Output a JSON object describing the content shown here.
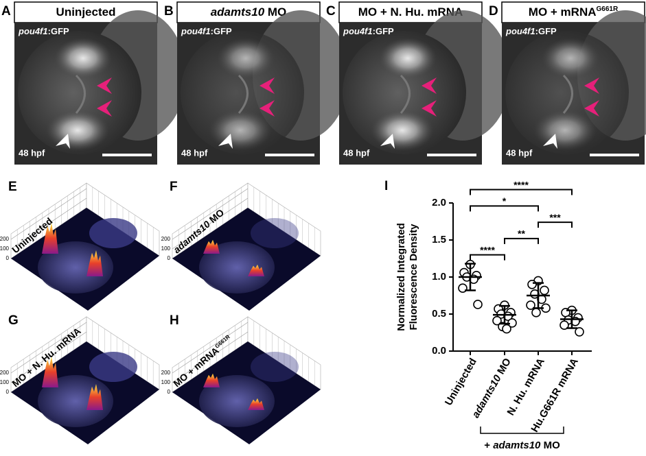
{
  "panels": [
    {
      "letter": "A",
      "title": [
        {
          "text": "Uninjected"
        }
      ],
      "reporter": [
        {
          "text": "pou4f1",
          "italic": true
        },
        {
          "text": ":GFP"
        }
      ],
      "stage": "48 hpf"
    },
    {
      "letter": "B",
      "title": [
        {
          "text": "adamts10",
          "italic": true
        },
        {
          "text": " MO"
        }
      ],
      "reporter": [
        {
          "text": "pou4f1",
          "italic": true
        },
        {
          "text": ":GFP"
        }
      ],
      "stage": "48 hpf"
    },
    {
      "letter": "C",
      "title": [
        {
          "text": "MO +  N. Hu. mRNA"
        }
      ],
      "reporter": [
        {
          "text": "pou4f1",
          "italic": true
        },
        {
          "text": ":GFP"
        }
      ],
      "stage": "48 hpf"
    },
    {
      "letter": "D",
      "title": [
        {
          "text": "MO + mRNA"
        },
        {
          "text": "G661R",
          "sup": true
        }
      ],
      "reporter": [
        {
          "text": "pou4f1",
          "italic": true
        },
        {
          "text": ":GFP"
        }
      ],
      "stage": "48 hpf"
    }
  ],
  "surface_panels": [
    {
      "letter": "E",
      "label": [
        {
          "text": "Uninjected"
        }
      ],
      "zticks": [
        0,
        100,
        200
      ]
    },
    {
      "letter": "F",
      "label": [
        {
          "text": "adamts10",
          "italic": true
        },
        {
          "text": " MO"
        }
      ],
      "zticks": [
        0,
        100,
        200
      ]
    },
    {
      "letter": "G",
      "label": [
        {
          "text": "MO +  N. Hu. mRNA"
        }
      ],
      "zticks": [
        0,
        100,
        200
      ]
    },
    {
      "letter": "H",
      "label": [
        {
          "text": "MO + mRNA"
        },
        {
          "text": "G661R",
          "sup": true
        }
      ],
      "zticks": [
        0,
        100,
        200
      ]
    }
  ],
  "chart_data": {
    "type": "dotplot",
    "letter": "I",
    "y_label": [
      "Normalized Integrated",
      "Fluorescence Density"
    ],
    "categories": [
      [
        {
          "text": "Uninjected"
        }
      ],
      [
        {
          "text": "adamts10",
          "italic": true
        },
        {
          "text": " MO"
        }
      ],
      [
        {
          "text": "N. Hu. mRNA"
        }
      ],
      [
        {
          "text": "Hu.G661R mRNA"
        }
      ]
    ],
    "points": [
      [
        1.17,
        1.06,
        1.02,
        1.0,
        0.97,
        0.85,
        0.63
      ],
      [
        0.62,
        0.57,
        0.52,
        0.5,
        0.47,
        0.41,
        0.38,
        0.33,
        0.3
      ],
      [
        0.95,
        0.9,
        0.82,
        0.77,
        0.7,
        0.62,
        0.58,
        0.52
      ],
      [
        0.55,
        0.52,
        0.45,
        0.42,
        0.4,
        0.35,
        0.26
      ]
    ],
    "means": [
      1.0,
      0.49,
      0.75,
      0.43
    ],
    "sd": [
      0.18,
      0.12,
      0.17,
      0.12
    ],
    "ylim": [
      0,
      2
    ],
    "yticks": [
      {
        "value": 0,
        "label": "0.0"
      },
      0.5,
      {
        "value": 1,
        "label": "1.0"
      },
      1.5,
      {
        "value": 2,
        "label": "2.0"
      }
    ],
    "significance": [
      {
        "from": 0,
        "to": 1,
        "label": "****"
      },
      {
        "from": 1,
        "to": 2,
        "label": "**"
      },
      {
        "from": 2,
        "to": 3,
        "label": "***"
      },
      {
        "from": 0,
        "to": 2,
        "label": "*"
      },
      {
        "from": 0,
        "to": 3,
        "label": "****"
      }
    ],
    "group_bracket": {
      "from": 1,
      "to": 3,
      "label": [
        {
          "text": "+ "
        },
        {
          "text": "adamts10",
          "italic": true
        },
        {
          "text": " MO"
        }
      ]
    }
  }
}
